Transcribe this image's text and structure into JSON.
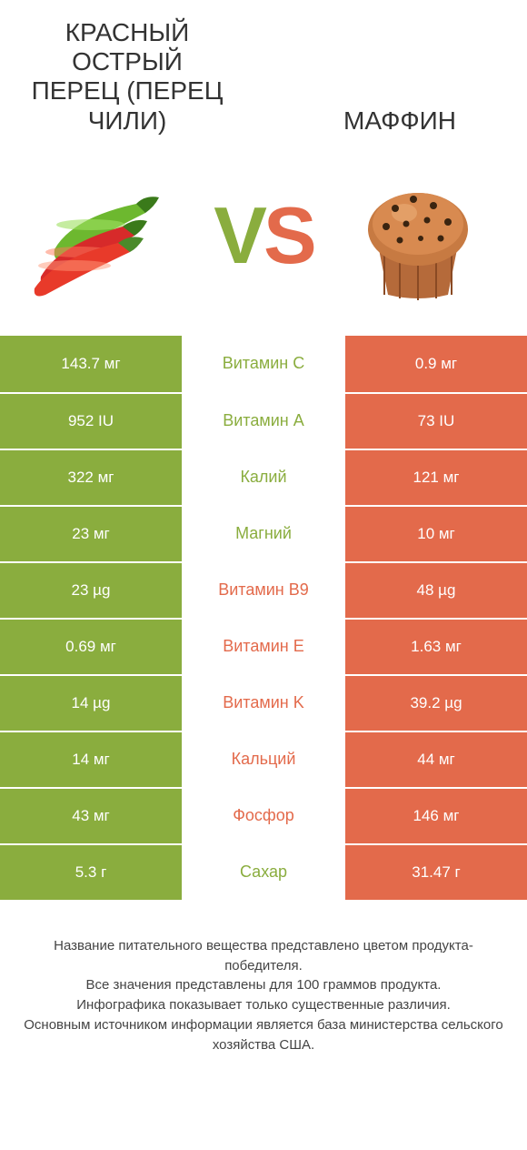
{
  "colors": {
    "green": "#8aad3e",
    "orange": "#e36a4b",
    "text": "#333333",
    "background": "#ffffff"
  },
  "header": {
    "left_title": "КРАСНЫЙ ОСТРЫЙ ПЕРЕЦ (ПЕРЕЦ ЧИЛИ)",
    "right_title": "МАФФИН",
    "vs_v": "V",
    "vs_s": "S"
  },
  "comparison": {
    "type": "table",
    "rows": [
      {
        "left": "143.7 мг",
        "label": "Витамин C",
        "right": "0.9 мг",
        "winner": "left"
      },
      {
        "left": "952 IU",
        "label": "Витамин A",
        "right": "73 IU",
        "winner": "left"
      },
      {
        "left": "322 мг",
        "label": "Калий",
        "right": "121 мг",
        "winner": "left"
      },
      {
        "left": "23 мг",
        "label": "Магний",
        "right": "10 мг",
        "winner": "left"
      },
      {
        "left": "23 µg",
        "label": "Витамин B9",
        "right": "48 µg",
        "winner": "right"
      },
      {
        "left": "0.69 мг",
        "label": "Витамин E",
        "right": "1.63 мг",
        "winner": "right"
      },
      {
        "left": "14 µg",
        "label": "Витамин K",
        "right": "39.2 µg",
        "winner": "right"
      },
      {
        "left": "14 мг",
        "label": "Кальций",
        "right": "44 мг",
        "winner": "right"
      },
      {
        "left": "43 мг",
        "label": "Фосфор",
        "right": "146 мг",
        "winner": "right"
      },
      {
        "left": "5.3 г",
        "label": "Сахар",
        "right": "31.47 г",
        "winner": "left"
      }
    ]
  },
  "footer": {
    "line1": "Название питательного вещества представлено цветом продукта-победителя.",
    "line2": "Все значения представлены для 100 граммов продукта.",
    "line3": "Инфографика показывает только существенные различия.",
    "line4": "Основным источником информации является база министерства сельского хозяйства США."
  }
}
